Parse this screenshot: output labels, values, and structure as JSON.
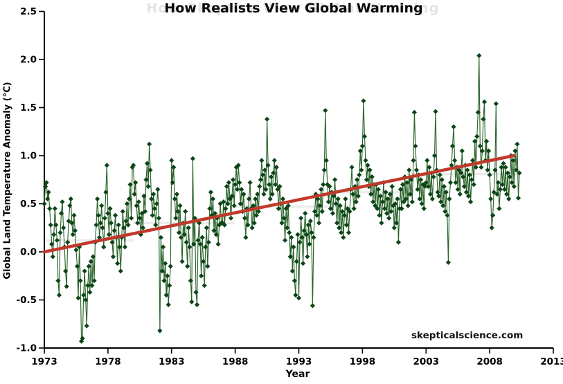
{
  "title": {
    "text": "How Realists View Global Warming",
    "ghost_text": "How Skeptics View Global Warming",
    "color": "#0a0a0a",
    "ghost_color": "#e4e4e4"
  },
  "watermark": {
    "text": "skepticalscience.com"
  },
  "chart_data": {
    "type": "line",
    "title": "How Realists View Global Warming",
    "xlabel": "Year",
    "ylabel": "Global Land Temperature Anomaly (°C)",
    "xlim": [
      1973,
      2013
    ],
    "ylim": [
      -1.0,
      2.5
    ],
    "grid": false,
    "legend": false,
    "x_ticks": [
      1973,
      1978,
      1983,
      1988,
      1993,
      1998,
      2003,
      2008,
      2013
    ],
    "x_tick_labels": [
      "1973",
      "1978",
      "1983",
      "1988",
      "1993",
      "1998",
      "2003",
      "2008",
      "2013"
    ],
    "y_ticks": [
      2.5,
      2.0,
      1.5,
      1.0,
      0.5,
      0.0,
      -0.5,
      -1.0
    ],
    "y_tick_labels": [
      "2.5",
      "2.0",
      "1.5",
      "1.0",
      "0.5",
      "0.0",
      "-0.5",
      "-1.0"
    ],
    "series": {
      "name": "monthly-land-temperature-anomaly",
      "marker": "diamond",
      "marker_color": "#0d4517",
      "line_color": "#2a642a",
      "start_year": 1973,
      "interval_months": 1,
      "values": [
        0.5,
        0.68,
        0.72,
        0.55,
        0.62,
        0.45,
        0.28,
        0.08,
        -0.05,
        0.18,
        0.45,
        0.28,
        0.12,
        -0.3,
        -0.45,
        0.2,
        0.4,
        0.52,
        0.25,
        0.05,
        -0.2,
        -0.36,
        0.1,
        0.32,
        0.48,
        0.55,
        0.3,
        0.18,
        0.38,
        0.22,
        0.02,
        -0.15,
        -0.48,
        0.05,
        -0.3,
        -0.93,
        -0.9,
        -0.45,
        -0.2,
        -0.5,
        -0.77,
        -0.35,
        -0.15,
        -0.42,
        -0.1,
        -0.35,
        -0.05,
        -0.3,
        0.1,
        0.28,
        0.55,
        0.38,
        0.15,
        0.3,
        0.48,
        0.25,
        0.05,
        0.35,
        0.62,
        0.9,
        0.4,
        0.18,
        0.45,
        0.3,
        0.1,
        -0.05,
        0.22,
        0.38,
        0.15,
        -0.12,
        0.28,
        0.05,
        -0.2,
        0.15,
        0.42,
        0.25,
        0.05,
        0.32,
        0.5,
        0.28,
        0.55,
        0.7,
        0.35,
        0.88,
        0.9,
        0.6,
        0.72,
        0.48,
        0.3,
        0.52,
        0.35,
        0.18,
        0.4,
        0.25,
        0.58,
        0.42,
        0.75,
        0.92,
        0.68,
        1.12,
        0.85,
        0.55,
        0.38,
        0.6,
        0.45,
        0.28,
        0.5,
        0.65,
        0.35,
        -0.82,
        0.15,
        -0.2,
        0.05,
        -0.3,
        -0.12,
        -0.45,
        -0.25,
        -0.55,
        -0.35,
        -0.15,
        0.95,
        0.72,
        0.88,
        0.55,
        0.35,
        0.6,
        0.42,
        0.2,
        0.48,
        0.15,
        -0.1,
        0.3,
        0.18,
        0.42,
        0.1,
        -0.15,
        0.25,
        0.05,
        -0.3,
        -0.52,
        0.97,
        0.08,
        0.35,
        -0.42,
        -0.55,
        0.12,
        0.3,
        0.08,
        -0.25,
        0.15,
        -0.1,
        -0.35,
        0.05,
        0.25,
        -0.15,
        0.1,
        0.45,
        0.62,
        0.38,
        0.55,
        0.22,
        0.4,
        0.18,
        0.35,
        0.08,
        0.28,
        0.5,
        0.3,
        0.3,
        0.52,
        0.28,
        0.45,
        0.68,
        0.5,
        0.72,
        0.55,
        0.35,
        0.58,
        0.75,
        0.48,
        0.7,
        0.88,
        0.65,
        0.9,
        0.72,
        0.5,
        0.65,
        0.42,
        0.6,
        0.35,
        0.15,
        0.45,
        0.28,
        0.55,
        0.72,
        0.45,
        0.25,
        0.48,
        0.3,
        0.55,
        0.38,
        0.6,
        0.42,
        0.68,
        0.75,
        0.95,
        0.8,
        0.6,
        0.85,
        0.65,
        1.38,
        0.9,
        0.7,
        0.55,
        0.78,
        0.6,
        0.82,
        0.95,
        0.7,
        0.88,
        0.65,
        0.45,
        0.68,
        0.5,
        0.3,
        0.55,
        0.35,
        0.12,
        0.45,
        0.25,
        0.48,
        0.2,
        -0.05,
        0.15,
        -0.2,
        0.05,
        -0.3,
        -0.45,
        -0.1,
        0.18,
        -0.48,
        0.1,
        0.35,
        0.15,
        -0.12,
        0.22,
        0.4,
        0.18,
        -0.05,
        0.28,
        0.08,
        0.32,
        0.2,
        -0.56,
        0.15,
        0.42,
        0.6,
        0.38,
        0.55,
        0.3,
        0.48,
        0.65,
        0.42,
        0.7,
        0.85,
        1.47,
        0.95,
        0.7,
        0.52,
        0.68,
        0.45,
        0.62,
        0.4,
        0.58,
        0.75,
        0.5,
        0.3,
        0.55,
        0.25,
        0.48,
        0.2,
        0.42,
        0.15,
        0.38,
        0.55,
        0.28,
        0.45,
        0.2,
        0.42,
        0.65,
        0.88,
        0.6,
        0.45,
        0.68,
        0.52,
        0.75,
        0.58,
        0.8,
        1.05,
        0.85,
        1.1,
        1.57,
        1.2,
        0.95,
        0.75,
        0.9,
        0.68,
        0.85,
        0.6,
        0.78,
        0.52,
        0.7,
        0.48,
        0.7,
        0.45,
        0.65,
        0.38,
        0.58,
        0.3,
        0.52,
        0.72,
        0.45,
        0.62,
        0.4,
        0.55,
        0.35,
        0.6,
        0.42,
        0.68,
        0.48,
        0.25,
        0.5,
        0.3,
        0.55,
        0.1,
        0.45,
        0.65,
        0.45,
        0.7,
        0.52,
        0.78,
        0.55,
        0.72,
        0.48,
        0.85,
        0.6,
        0.75,
        0.52,
        0.95,
        1.45,
        1.1,
        0.85,
        0.65,
        0.8,
        0.55,
        0.75,
        0.5,
        0.7,
        0.45,
        0.68,
        0.72,
        0.95,
        0.68,
        0.88,
        0.6,
        0.82,
        0.55,
        0.78,
        1.0,
        1.46,
        0.85,
        0.62,
        0.58,
        0.8,
        0.52,
        0.75,
        0.48,
        0.68,
        0.42,
        0.62,
        0.38,
        -0.11,
        0.55,
        0.72,
        0.9,
        1.1,
        1.3,
        0.95,
        0.72,
        0.88,
        0.65,
        0.85,
        0.6,
        0.82,
        1.05,
        0.78,
        0.68,
        0.9,
        0.62,
        0.85,
        0.58,
        0.8,
        0.52,
        0.75,
        0.95,
        0.7,
        1.15,
        0.88,
        1.2,
        1.45,
        2.04,
        1.1,
        0.88,
        1.05,
        1.38,
        1.56,
        0.95,
        1.15,
        0.85,
        1.05,
        0.8,
        0.55,
        0.25,
        0.38,
        0.62,
        0.85,
        1.54,
        0.6,
        0.72,
        0.45,
        0.65,
        0.88,
        0.7,
        0.92,
        0.65,
        0.88,
        0.6,
        0.82,
        0.55,
        0.78,
        1.0,
        0.72,
        0.95,
        0.68,
        1.05,
        0.85,
        1.12,
        0.56,
        0.82
      ]
    },
    "trend": {
      "name": "linear-trend",
      "color": "#c0392b",
      "x1": 1973.0,
      "y1": 0.0,
      "x2": 2009.9,
      "y2": 1.0
    },
    "ghost_steps": {
      "color": "#ececec",
      "segments": [
        [
          1973.0,
          1980.0,
          0.12
        ],
        [
          1980.0,
          1988.0,
          0.3
        ],
        [
          1988.0,
          1995.5,
          0.47
        ],
        [
          1995.5,
          2001.5,
          0.62
        ],
        [
          2001.5,
          2010.2,
          0.81
        ]
      ]
    }
  }
}
